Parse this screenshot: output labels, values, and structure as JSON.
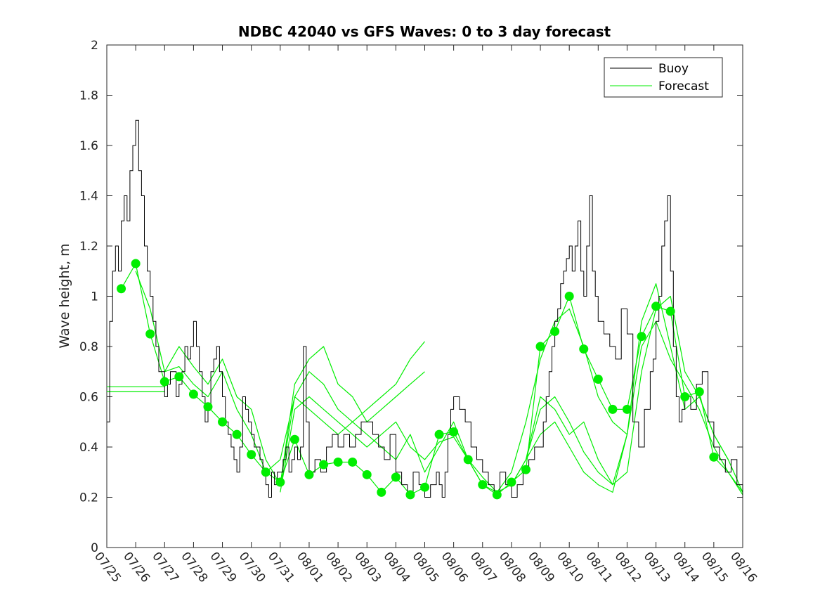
{
  "chart_data": {
    "type": "line",
    "title": "NDBC 42040 vs GFS Waves: 0 to 3 day forecast",
    "xlabel": "",
    "ylabel": "Wave height, m",
    "ylim": [
      0,
      2
    ],
    "yticks": [
      0,
      0.2,
      0.4,
      0.6,
      0.8,
      1,
      1.2,
      1.4,
      1.6,
      1.8,
      2
    ],
    "ytick_labels": [
      "0",
      "0.2",
      "0.4",
      "0.6",
      "0.8",
      "1",
      "1.2",
      "1.4",
      "1.6",
      "1.8",
      "2"
    ],
    "xlim": [
      0,
      22
    ],
    "xtick_labels": [
      "07/25",
      "07/26",
      "07/27",
      "07/28",
      "07/29",
      "07/30",
      "07/31",
      "08/01",
      "08/02",
      "08/03",
      "08/04",
      "08/05",
      "08/06",
      "08/07",
      "08/08",
      "08/09",
      "08/10",
      "08/11",
      "08/12",
      "08/13",
      "08/14",
      "08/15",
      "08/16"
    ],
    "legend": {
      "location": "top-right",
      "entries": [
        "Buoy",
        "Forecast"
      ]
    },
    "colors": {
      "buoy": "#000000",
      "forecast": "#00ee00"
    },
    "series": [
      {
        "name": "Buoy",
        "x": [
          0,
          0.1,
          0.2,
          0.3,
          0.4,
          0.5,
          0.6,
          0.7,
          0.8,
          0.9,
          1,
          1.1,
          1.2,
          1.3,
          1.4,
          1.5,
          1.6,
          1.7,
          1.8,
          1.9,
          2,
          2.1,
          2.2,
          2.3,
          2.4,
          2.5,
          2.6,
          2.7,
          2.8,
          2.9,
          3,
          3.1,
          3.2,
          3.3,
          3.4,
          3.5,
          3.6,
          3.7,
          3.8,
          3.9,
          4,
          4.1,
          4.2,
          4.3,
          4.4,
          4.5,
          4.6,
          4.7,
          4.8,
          4.9,
          5,
          5.1,
          5.2,
          5.3,
          5.4,
          5.5,
          5.6,
          5.7,
          5.8,
          5.9,
          6,
          6.1,
          6.2,
          6.3,
          6.4,
          6.5,
          6.6,
          6.7,
          6.8,
          6.9,
          7,
          7.2,
          7.4,
          7.6,
          7.8,
          8,
          8.2,
          8.4,
          8.6,
          8.8,
          9,
          9.2,
          9.4,
          9.6,
          9.8,
          10,
          10.2,
          10.4,
          10.6,
          10.8,
          11,
          11.2,
          11.4,
          11.5,
          11.6,
          11.7,
          11.8,
          11.9,
          12,
          12.2,
          12.4,
          12.6,
          12.8,
          13,
          13.2,
          13.4,
          13.6,
          13.8,
          14,
          14.2,
          14.4,
          14.6,
          14.8,
          15,
          15.1,
          15.2,
          15.3,
          15.4,
          15.5,
          15.6,
          15.7,
          15.8,
          15.9,
          16,
          16.1,
          16.2,
          16.3,
          16.4,
          16.5,
          16.6,
          16.7,
          16.8,
          16.9,
          17,
          17.2,
          17.4,
          17.6,
          17.8,
          18,
          18.2,
          18.4,
          18.6,
          18.8,
          18.9,
          19,
          19.1,
          19.2,
          19.3,
          19.4,
          19.5,
          19.6,
          19.7,
          19.8,
          19.9,
          20,
          20.2,
          20.4,
          20.6,
          20.8,
          21,
          21.2,
          21.4,
          21.6,
          21.8,
          22
        ],
        "values": [
          0.5,
          0.9,
          1.1,
          1.2,
          1.1,
          1.3,
          1.4,
          1.3,
          1.5,
          1.6,
          1.7,
          1.5,
          1.4,
          1.2,
          1.1,
          1.0,
          0.9,
          0.8,
          0.7,
          0.7,
          0.6,
          0.65,
          0.7,
          0.7,
          0.6,
          0.65,
          0.7,
          0.8,
          0.75,
          0.8,
          0.9,
          0.8,
          0.7,
          0.6,
          0.5,
          0.55,
          0.7,
          0.75,
          0.8,
          0.7,
          0.6,
          0.5,
          0.45,
          0.4,
          0.35,
          0.3,
          0.4,
          0.6,
          0.55,
          0.5,
          0.45,
          0.4,
          0.4,
          0.35,
          0.3,
          0.25,
          0.2,
          0.3,
          0.25,
          0.3,
          0.3,
          0.35,
          0.4,
          0.3,
          0.35,
          0.4,
          0.35,
          0.4,
          0.8,
          0.5,
          0.3,
          0.35,
          0.3,
          0.4,
          0.45,
          0.4,
          0.45,
          0.4,
          0.45,
          0.5,
          0.5,
          0.45,
          0.4,
          0.35,
          0.45,
          0.3,
          0.25,
          0.2,
          0.3,
          0.25,
          0.2,
          0.25,
          0.3,
          0.25,
          0.2,
          0.3,
          0.45,
          0.55,
          0.6,
          0.55,
          0.5,
          0.4,
          0.35,
          0.3,
          0.25,
          0.2,
          0.3,
          0.25,
          0.2,
          0.25,
          0.3,
          0.35,
          0.4,
          0.4,
          0.5,
          0.6,
          0.7,
          0.8,
          0.9,
          0.95,
          1.05,
          1.1,
          1.15,
          1.2,
          1.1,
          1.2,
          1.3,
          1.1,
          1.0,
          1.2,
          1.4,
          1.1,
          1.0,
          0.9,
          0.85,
          0.8,
          0.75,
          0.95,
          0.85,
          0.5,
          0.4,
          0.55,
          0.7,
          0.75,
          0.9,
          1.0,
          1.2,
          1.3,
          1.4,
          1.1,
          0.8,
          0.6,
          0.5,
          0.55,
          0.6,
          0.55,
          0.65,
          0.7,
          0.5,
          0.4,
          0.35,
          0.3,
          0.35,
          0.25,
          0.2
        ]
      },
      {
        "name": "Forecast",
        "runs": [
          {
            "x": [
              0,
              2.0
            ],
            "values": [
              0.64,
              0.64
            ]
          },
          {
            "x": [
              0,
              2.0
            ],
            "values": [
              0.62,
              0.62
            ]
          },
          {
            "x": [
              0.5,
              1.0,
              1.5,
              2.0,
              2.5,
              3.0,
              3.5,
              4.0,
              4.5,
              5.0,
              5.5,
              6.0,
              6.5,
              7.0,
              7.5,
              8.0,
              8.5,
              9.0,
              9.5,
              10.0,
              10.5,
              11.0,
              11.5,
              12.0,
              12.5,
              13.0,
              13.5,
              14.0,
              14.5,
              15.0,
              15.5,
              16.0,
              16.5,
              17.0,
              17.5,
              18.0,
              18.5,
              19.0,
              19.5,
              20.0,
              20.5,
              21.0,
              21.5,
              22.0
            ],
            "values": [
              1.03,
              1.13,
              0.85,
              0.66,
              0.68,
              0.61,
              0.56,
              0.5,
              0.45,
              0.37,
              0.3,
              0.26,
              0.43,
              0.29,
              0.33,
              0.34,
              0.34,
              0.29,
              0.22,
              0.28,
              0.21,
              0.24,
              0.45,
              0.46,
              0.35,
              0.25,
              0.21,
              0.26,
              0.31,
              0.8,
              0.86,
              1.0,
              0.79,
              0.67,
              0.55,
              0.55,
              0.84,
              0.96,
              0.94,
              0.6,
              0.62,
              0.36,
              0.3,
              0.21
            ]
          },
          {
            "x": [
              1.0,
              1.5,
              2.0,
              2.5,
              3.0,
              3.5,
              4.0,
              4.5,
              5.0,
              5.5,
              6.0,
              6.5,
              7.0,
              7.5,
              8.0,
              8.5,
              9.0,
              9.5,
              10.0,
              10.5,
              11.0,
              11.5,
              12.0,
              12.5,
              13.0,
              13.5,
              14.0,
              14.5,
              15.0,
              15.5,
              16.0,
              16.5,
              17.0,
              17.5,
              18.0,
              18.5,
              19.0,
              19.5,
              20.0,
              20.5,
              21.0,
              21.5,
              22.0
            ],
            "values": [
              1.1,
              0.95,
              0.7,
              0.72,
              0.65,
              0.6,
              0.7,
              0.55,
              0.45,
              0.3,
              0.35,
              0.6,
              0.55,
              0.5,
              0.45,
              0.5,
              0.45,
              0.4,
              0.35,
              0.45,
              0.3,
              0.4,
              0.5,
              0.35,
              0.25,
              0.22,
              0.3,
              0.5,
              0.75,
              0.9,
              0.95,
              0.8,
              0.6,
              0.5,
              0.45,
              0.9,
              1.05,
              0.8,
              0.55,
              0.6,
              0.45,
              0.35,
              0.22
            ]
          },
          {
            "x": [
              2.0,
              2.5,
              3.0,
              3.5,
              4.0,
              4.5,
              5.0,
              5.5,
              6.0,
              6.5,
              7.0,
              7.5,
              8.0,
              8.5,
              9.0,
              9.5,
              10.0,
              10.5,
              11.0
            ],
            "values": [
              0.7,
              0.8,
              0.72,
              0.65,
              0.75,
              0.6,
              0.55,
              0.35,
              0.25,
              0.6,
              0.7,
              0.65,
              0.55,
              0.5,
              0.55,
              0.6,
              0.65,
              0.75,
              0.82
            ]
          },
          {
            "x": [
              6.0,
              6.5,
              7.0,
              7.5,
              8.0,
              8.5,
              9.0,
              9.5,
              10.0,
              10.5,
              11.0
            ],
            "values": [
              0.25,
              0.65,
              0.75,
              0.8,
              0.65,
              0.6,
              0.5,
              0.55,
              0.6,
              0.65,
              0.7
            ]
          },
          {
            "x": [
              6.0,
              6.5,
              7.0,
              7.5,
              8.0,
              8.5,
              9.0,
              9.5,
              10.0,
              10.5,
              11.0,
              11.5,
              12.0,
              12.5,
              13.0,
              13.5,
              14.0,
              14.5,
              15.0,
              15.5,
              16.0,
              16.5,
              17.0,
              17.5,
              18.0
            ],
            "values": [
              0.22,
              0.55,
              0.6,
              0.55,
              0.5,
              0.45,
              0.4,
              0.45,
              0.5,
              0.4,
              0.35,
              0.42,
              0.44,
              0.35,
              0.28,
              0.22,
              0.25,
              0.35,
              0.6,
              0.55,
              0.45,
              0.5,
              0.35,
              0.25,
              0.45
            ]
          },
          {
            "x": [
              14.0,
              14.5,
              15.0,
              15.5,
              16.0,
              16.5,
              17.0,
              17.5,
              18.0,
              18.5,
              19.0,
              19.5,
              20.0,
              20.5,
              21.0,
              21.5,
              22.0
            ],
            "values": [
              0.25,
              0.35,
              0.45,
              0.5,
              0.4,
              0.3,
              0.25,
              0.22,
              0.45,
              0.8,
              0.9,
              0.75,
              0.65,
              0.55,
              0.4,
              0.3,
              0.22
            ]
          },
          {
            "x": [
              14.5,
              15.0,
              15.5,
              16.0,
              16.5,
              17.0,
              17.5,
              18.0,
              18.5,
              19.0,
              19.5,
              20.0,
              20.5,
              21.0,
              21.5
            ],
            "values": [
              0.35,
              0.55,
              0.6,
              0.5,
              0.38,
              0.3,
              0.25,
              0.3,
              0.7,
              0.95,
              1.0,
              0.7,
              0.6,
              0.45,
              0.35
            ]
          }
        ]
      }
    ],
    "markers": {
      "x": [
        0.5,
        1.0,
        1.5,
        2.0,
        2.5,
        3.0,
        3.5,
        4.0,
        4.5,
        5.0,
        5.5,
        6.0,
        6.5,
        7.0,
        7.5,
        8.0,
        8.5,
        9.0,
        9.5,
        10.0,
        10.5,
        11.0,
        11.5,
        12.0,
        12.5,
        13.0,
        13.5,
        14.0,
        14.5,
        15.0,
        15.5,
        16.0,
        16.5,
        17.0,
        17.5,
        18.0,
        18.5,
        19.0,
        19.5,
        20.0,
        20.5,
        21.0
      ],
      "values": [
        1.03,
        1.13,
        0.85,
        0.66,
        0.68,
        0.61,
        0.56,
        0.5,
        0.45,
        0.37,
        0.3,
        0.26,
        0.43,
        0.29,
        0.33,
        0.34,
        0.34,
        0.29,
        0.22,
        0.28,
        0.21,
        0.24,
        0.45,
        0.46,
        0.35,
        0.25,
        0.21,
        0.26,
        0.31,
        0.8,
        0.86,
        1.0,
        0.79,
        0.67,
        0.55,
        0.55,
        0.84,
        0.96,
        0.94,
        0.6,
        0.62,
        0.36
      ]
    }
  }
}
